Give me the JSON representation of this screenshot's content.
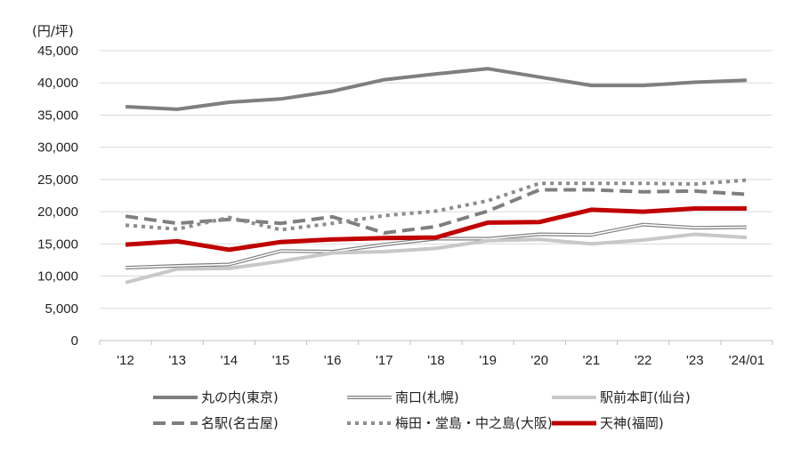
{
  "chart_data": {
    "type": "line",
    "unit_label": "(円/坪)",
    "categories": [
      "'12",
      "'13",
      "'14",
      "'15",
      "'16",
      "'17",
      "'18",
      "'19",
      "'20",
      "'21",
      "'22",
      "'23",
      "'24/01"
    ],
    "y_ticks": [
      "0",
      "5,000",
      "10,000",
      "15,000",
      "20,000",
      "25,000",
      "30,000",
      "35,000",
      "40,000",
      "45,000"
    ],
    "ylim": [
      0,
      45000
    ],
    "grid": true,
    "legend_position": "bottom",
    "series": [
      {
        "name": "丸の内(東京)",
        "color": "#7f7f7f",
        "style": "solid",
        "values": [
          36300,
          35900,
          37000,
          37500,
          38700,
          40500,
          41400,
          42200,
          40900,
          39600,
          39600,
          40100,
          40400
        ]
      },
      {
        "name": "南口(札幌)",
        "color": "#7f7f7f",
        "style": "double",
        "values": [
          11300,
          11600,
          11800,
          13900,
          13800,
          14900,
          15800,
          15800,
          16500,
          16400,
          18000,
          17500,
          17600
        ]
      },
      {
        "name": "駅前本町(仙台)",
        "color": "#c8c8c8",
        "style": "solid",
        "values": [
          9000,
          11100,
          11200,
          12300,
          13600,
          13800,
          14300,
          15500,
          15700,
          15000,
          15600,
          16500,
          16000
        ]
      },
      {
        "name": "名駅(名古屋)",
        "color": "#7f7f7f",
        "style": "dashed",
        "values": [
          19300,
          18200,
          18800,
          18200,
          19200,
          16700,
          17700,
          20100,
          23400,
          23400,
          23100,
          23200,
          22700
        ]
      },
      {
        "name": "梅田・堂島・中之島(大阪)",
        "color": "#8c8c8c",
        "style": "dotted",
        "values": [
          17900,
          17300,
          19100,
          17200,
          18200,
          19400,
          20100,
          21700,
          24400,
          24400,
          24400,
          24300,
          24900
        ]
      },
      {
        "name": "天神(福岡)",
        "color": "#c00000",
        "style": "solid-thick",
        "values": [
          14900,
          15400,
          14100,
          15300,
          15700,
          15900,
          16000,
          18300,
          18400,
          20300,
          20000,
          20500,
          20500
        ]
      }
    ]
  }
}
